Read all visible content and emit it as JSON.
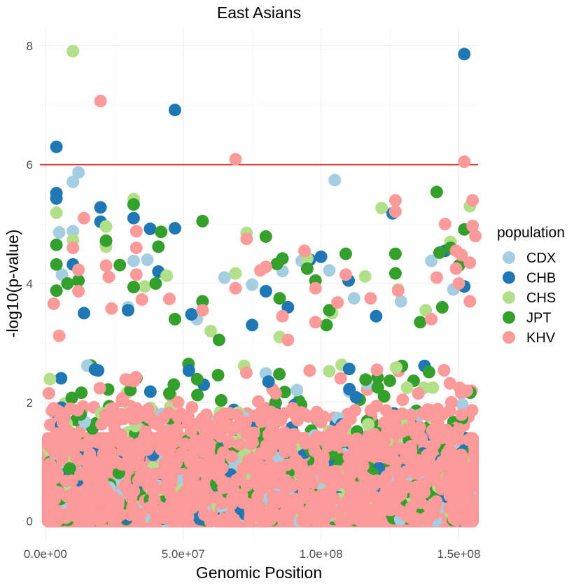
{
  "chart_data": {
    "type": "scatter",
    "title": "East Asians",
    "xlabel": "Genomic Position",
    "ylabel": "-log10(p-value)",
    "xlim": [
      -2000000,
      157000000
    ],
    "ylim": [
      -0.3,
      8.3
    ],
    "x_ticks": [
      0,
      50000000,
      100000000,
      150000000
    ],
    "x_tick_labels": [
      "0.0e+00",
      "5.0e+07",
      "1.0e+08",
      "1.5e+08"
    ],
    "y_ticks": [
      0,
      2,
      4,
      6,
      8
    ],
    "y_tick_labels": [
      "0",
      "2",
      "4",
      "6",
      "8"
    ],
    "grid": true,
    "threshold_line": {
      "y": 6,
      "color": "#e31a1c"
    },
    "legend": {
      "title": "population",
      "position": "right",
      "entries": [
        {
          "name": "CDX",
          "color": "#a6cee3"
        },
        {
          "name": "CHB",
          "color": "#1f78b4"
        },
        {
          "name": "CHS",
          "color": "#b2df8a"
        },
        {
          "name": "JPT",
          "color": "#33a02c"
        },
        {
          "name": "KHV",
          "color": "#fb9a99"
        }
      ]
    },
    "dense_region": {
      "note": "Thousands of overlapping points with low -log10(p) values; gap near the centromere",
      "segments": [
        [
          1000000,
          60000000
        ],
        [
          62000000,
          155000000
        ]
      ],
      "y_max": 2.8
    },
    "series": [
      {
        "name": "CDX",
        "color": "#a6cee3",
        "points": [
          [
            12000000,
            5.87
          ],
          [
            10000000,
            5.71
          ],
          [
            105000000,
            5.74
          ],
          [
            5000000,
            4.86
          ],
          [
            10000000,
            4.88
          ],
          [
            6000000,
            4.15
          ],
          [
            32000000,
            4.38
          ],
          [
            37000000,
            4.4
          ],
          [
            65000000,
            4.1
          ],
          [
            75000000,
            3.98
          ],
          [
            86000000,
            4.21
          ],
          [
            93000000,
            4.38
          ],
          [
            103000000,
            4.22
          ],
          [
            112000000,
            3.75
          ],
          [
            140000000,
            4.38
          ],
          [
            148000000,
            3.9
          ],
          [
            22000000,
            4.65
          ],
          [
            30000000,
            3.6
          ],
          [
            55000000,
            3.4
          ],
          [
            129000000,
            3.7
          ]
        ]
      },
      {
        "name": "CHB",
        "color": "#1f78b4",
        "points": [
          [
            152000000,
            7.86
          ],
          [
            47000000,
            6.92
          ],
          [
            4000000,
            6.3
          ],
          [
            4000000,
            5.52
          ],
          [
            4000000,
            5.43
          ],
          [
            20000000,
            5.28
          ],
          [
            126000000,
            5.18
          ],
          [
            20000000,
            5.04
          ],
          [
            47000000,
            4.93
          ],
          [
            32000000,
            5.1
          ],
          [
            10000000,
            4.32
          ],
          [
            38000000,
            4.92
          ],
          [
            41000000,
            4.2
          ],
          [
            80000000,
            3.87
          ],
          [
            96000000,
            4.4
          ],
          [
            100000000,
            4.45
          ],
          [
            110000000,
            4.05
          ],
          [
            145000000,
            4.55
          ],
          [
            152000000,
            3.95
          ],
          [
            14000000,
            3.5
          ],
          [
            53000000,
            3.48
          ],
          [
            75000000,
            3.3
          ],
          [
            120000000,
            3.45
          ],
          [
            88000000,
            3.6
          ],
          [
            30000000,
            3.55
          ]
        ]
      },
      {
        "name": "CHS",
        "color": "#b2df8a",
        "points": [
          [
            10000000,
            7.91
          ],
          [
            32000000,
            5.42
          ],
          [
            4000000,
            5.19
          ],
          [
            122000000,
            5.27
          ],
          [
            154000000,
            5.3
          ],
          [
            22000000,
            4.96
          ],
          [
            73000000,
            4.85
          ],
          [
            69000000,
            4.17
          ],
          [
            44000000,
            4.13
          ],
          [
            147000000,
            4.7
          ],
          [
            10000000,
            4.73
          ],
          [
            22000000,
            4.62
          ],
          [
            36000000,
            3.95
          ],
          [
            95000000,
            4.42
          ],
          [
            116000000,
            4.12
          ],
          [
            138000000,
            3.55
          ],
          [
            104000000,
            3.5
          ],
          [
            85000000,
            3.1
          ],
          [
            60000000,
            3.2
          ],
          [
            128000000,
            3.9
          ]
        ]
      },
      {
        "name": "JPT",
        "color": "#33a02c",
        "points": [
          [
            142000000,
            5.54
          ],
          [
            32000000,
            5.33
          ],
          [
            57000000,
            5.05
          ],
          [
            4000000,
            4.65
          ],
          [
            22000000,
            4.72
          ],
          [
            41000000,
            4.62
          ],
          [
            42000000,
            4.87
          ],
          [
            80000000,
            4.79
          ],
          [
            152000000,
            4.91
          ],
          [
            147000000,
            4.6
          ],
          [
            143000000,
            4.52
          ],
          [
            127000000,
            4.5
          ],
          [
            109000000,
            4.5
          ],
          [
            84000000,
            4.33
          ],
          [
            4000000,
            4.32
          ],
          [
            27000000,
            4.31
          ],
          [
            4000000,
            3.88
          ],
          [
            8000000,
            4.0
          ],
          [
            12000000,
            4.05
          ],
          [
            32000000,
            3.94
          ],
          [
            40000000,
            4.0
          ],
          [
            57000000,
            3.7
          ],
          [
            86000000,
            4.42
          ],
          [
            95000000,
            4.25
          ],
          [
            98000000,
            4.05
          ],
          [
            103000000,
            3.55
          ],
          [
            102000000,
            3.3
          ],
          [
            85000000,
            3.75
          ],
          [
            63000000,
            3.05
          ],
          [
            47000000,
            3.4
          ],
          [
            127000000,
            4.17
          ],
          [
            150000000,
            4.3
          ],
          [
            136000000,
            3.35
          ],
          [
            144000000,
            3.6
          ]
        ]
      },
      {
        "name": "KHV",
        "color": "#fb9a99",
        "points": [
          [
            20000000,
            7.07
          ],
          [
            69000000,
            6.09
          ],
          [
            152000000,
            6.05
          ],
          [
            127000000,
            5.4
          ],
          [
            127000000,
            5.21
          ],
          [
            155000000,
            5.4
          ],
          [
            14000000,
            5.1
          ],
          [
            155000000,
            4.97
          ],
          [
            33000000,
            4.88
          ],
          [
            73000000,
            4.75
          ],
          [
            94000000,
            4.55
          ],
          [
            145000000,
            5.0
          ],
          [
            149000000,
            4.55
          ],
          [
            151000000,
            4.48
          ],
          [
            156000000,
            4.8
          ],
          [
            10000000,
            4.6
          ],
          [
            33000000,
            4.6
          ],
          [
            12000000,
            4.23
          ],
          [
            22000000,
            4.3
          ],
          [
            23000000,
            4.11
          ],
          [
            33000000,
            4.15
          ],
          [
            78000000,
            4.22
          ],
          [
            80000000,
            4.28
          ],
          [
            109000000,
            4.15
          ],
          [
            142000000,
            4.1
          ],
          [
            154000000,
            4.35
          ],
          [
            149000000,
            4.25
          ],
          [
            69000000,
            3.92
          ],
          [
            98000000,
            3.92
          ],
          [
            12000000,
            3.87
          ],
          [
            45000000,
            3.74
          ],
          [
            35000000,
            3.73
          ],
          [
            3000000,
            3.66
          ],
          [
            106000000,
            3.68
          ],
          [
            118000000,
            3.75
          ],
          [
            128000000,
            3.88
          ],
          [
            150000000,
            4.0
          ],
          [
            86000000,
            3.45
          ],
          [
            98000000,
            3.35
          ],
          [
            57000000,
            3.55
          ],
          [
            140000000,
            3.4
          ],
          [
            154000000,
            3.7
          ],
          [
            88000000,
            3.05
          ],
          [
            5000000,
            3.12
          ],
          [
            24000000,
            3.58
          ]
        ]
      }
    ]
  }
}
